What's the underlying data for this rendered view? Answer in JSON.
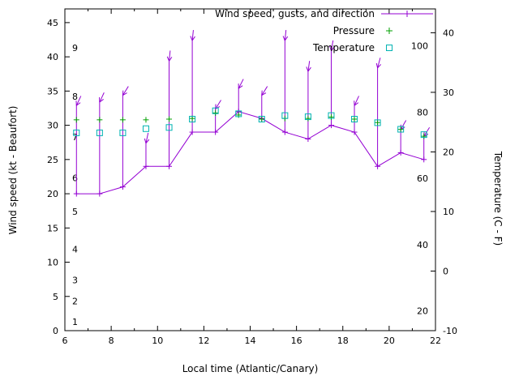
{
  "window": {
    "background": "#ffffff"
  },
  "chart_data": {
    "type": "line",
    "title": "",
    "xlabel": "Local time (Atlantic/Canary)",
    "ylabel_left": "Wind speed (kt - Beaufort)",
    "ylabel_right": "Temperature (C - F)",
    "grid": false,
    "legend_position": "top-right-inside",
    "x_range": [
      6,
      22
    ],
    "y_left_range": [
      0,
      47
    ],
    "y_right_range": [
      -10,
      44
    ],
    "x_ticks": [
      6,
      8,
      10,
      12,
      14,
      16,
      18,
      20,
      22
    ],
    "y_left_ticks": [
      0,
      5,
      10,
      15,
      20,
      25,
      30,
      35,
      40,
      45
    ],
    "y_right_ticks": [
      -10,
      0,
      10,
      20,
      30,
      40
    ],
    "beaufort_labels": {
      "values": [
        "1",
        "2",
        "3",
        "4",
        "5",
        "6",
        "7",
        "8",
        "9"
      ],
      "kt_positions": [
        1.3,
        4.3,
        7.4,
        11.9,
        17.4,
        22.3,
        28.3,
        34.2,
        41.3
      ]
    },
    "fahrenheit_labels": [
      "20",
      "40",
      "60",
      "80",
      "100"
    ],
    "fahrenheit_values": [
      20,
      40,
      60,
      80,
      100
    ],
    "x": [
      6.5,
      7.5,
      8.5,
      9.5,
      10.5,
      11.5,
      12.5,
      13.5,
      14.5,
      15.5,
      16.5,
      17.5,
      18.5,
      19.5,
      20.5,
      21.5
    ],
    "series": [
      {
        "name": "Wind speed, gusts, and direction",
        "color": "#9400d3",
        "marker": "plus-line-with-direction-arrows",
        "axis": "left",
        "wind_kt": [
          20,
          20,
          21,
          24,
          24,
          29,
          29,
          32,
          31,
          29,
          28,
          30,
          29,
          24,
          26,
          25
        ],
        "gust_kt": [
          33,
          33.5,
          34.5,
          27.5,
          39.5,
          42.5,
          32.5,
          35.5,
          34.5,
          42.5,
          38,
          41,
          33,
          38.5,
          29.5,
          28.5
        ],
        "arrow_angle_deg": [
          205,
          205,
          212,
          192,
          186,
          186,
          212,
          207,
          212,
          186,
          188,
          190,
          205,
          195,
          210,
          212
        ]
      },
      {
        "name": "Pressure",
        "color": "#00a000",
        "marker": "plus",
        "axis": "left-unlabeled",
        "values_kt_axis": [
          30.8,
          30.8,
          30.8,
          30.8,
          30.9,
          31,
          31.8,
          31.5,
          30.9,
          31,
          31,
          31.2,
          30.9,
          30.4,
          29.4,
          28.4
        ]
      },
      {
        "name": "Temperature",
        "color": "#00b3b3",
        "marker": "open-square",
        "axis": "right",
        "celsius": [
          23.2,
          23.2,
          23.2,
          23.9,
          24.1,
          25.5,
          26.9,
          26.4,
          25.5,
          26.1,
          25.9,
          26.1,
          25.5,
          24.9,
          23.8,
          22.9
        ]
      }
    ]
  }
}
